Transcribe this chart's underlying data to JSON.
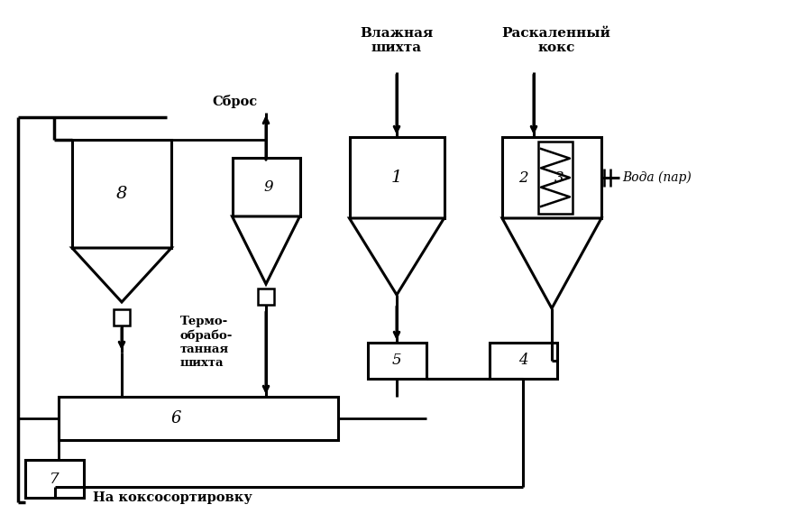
{
  "bg_color": "#ffffff",
  "line_color": "#000000",
  "labels": {
    "vlazhnaya": "Влажная\nшихта",
    "raskalen": "Раскаленный\nкокс",
    "sbros": "Сброс",
    "termo": "Термо-\nобрабо-\nтанная\nшихта",
    "voda": "Вода (пар)",
    "na_koks": "На коксосортировку"
  },
  "numbers": [
    "1",
    "2",
    "3",
    "4",
    "5",
    "6",
    "7",
    "8",
    "9"
  ]
}
